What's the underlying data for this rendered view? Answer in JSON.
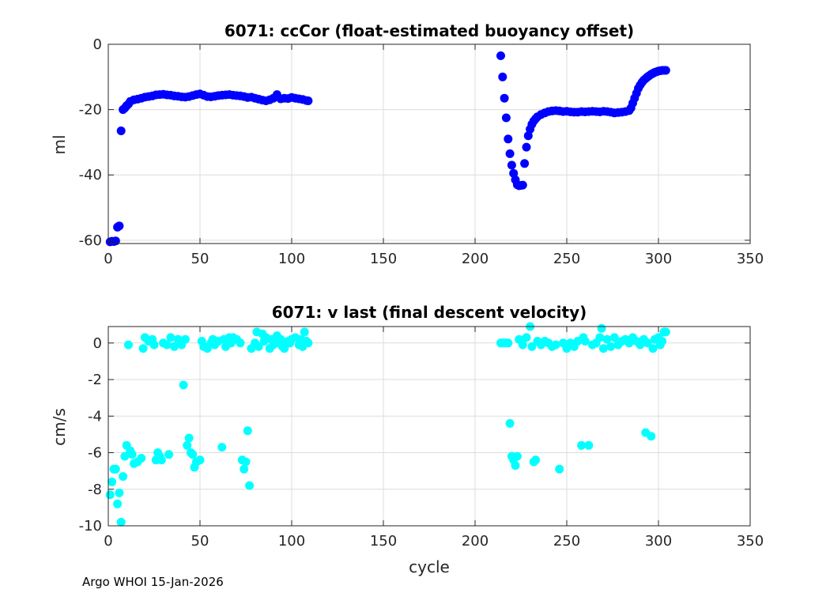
{
  "footer": "Argo WHOI 15-Jan-2026",
  "chart_data": [
    {
      "type": "scatter",
      "title": "6071: ccCor (float-estimated buoyancy offset)",
      "xlabel": "",
      "ylabel": "ml",
      "xlim": [
        0,
        350
      ],
      "ylim": [
        -61,
        0
      ],
      "xticks": [
        0,
        50,
        100,
        150,
        200,
        250,
        300,
        350
      ],
      "yticks": [
        0,
        -20,
        -40,
        -60
      ],
      "grid": true,
      "color": "#0000ff",
      "series": [
        {
          "name": "ccCor",
          "points": [
            [
              1,
              -60.5
            ],
            [
              2,
              -60.3
            ],
            [
              3,
              -60.4
            ],
            [
              4,
              -60.2
            ],
            [
              5,
              -56.0
            ],
            [
              6,
              -55.6
            ],
            [
              7,
              -26.5
            ],
            [
              8,
              -20.0
            ],
            [
              9,
              -19.5
            ],
            [
              10,
              -18.8
            ],
            [
              11,
              -18.3
            ],
            [
              12,
              -17.5
            ],
            [
              14,
              -17.0
            ],
            [
              16,
              -16.8
            ],
            [
              18,
              -16.5
            ],
            [
              20,
              -16.2
            ],
            [
              22,
              -16.0
            ],
            [
              24,
              -15.8
            ],
            [
              26,
              -15.5
            ],
            [
              28,
              -15.4
            ],
            [
              30,
              -15.3
            ],
            [
              32,
              -15.5
            ],
            [
              34,
              -15.6
            ],
            [
              36,
              -15.8
            ],
            [
              38,
              -15.9
            ],
            [
              40,
              -16.1
            ],
            [
              42,
              -16.2
            ],
            [
              44,
              -16.0
            ],
            [
              46,
              -15.7
            ],
            [
              48,
              -15.4
            ],
            [
              50,
              -15.2
            ],
            [
              52,
              -15.6
            ],
            [
              54,
              -16.0
            ],
            [
              56,
              -16.1
            ],
            [
              58,
              -15.9
            ],
            [
              60,
              -15.7
            ],
            [
              62,
              -15.6
            ],
            [
              64,
              -15.5
            ],
            [
              66,
              -15.4
            ],
            [
              68,
              -15.6
            ],
            [
              70,
              -15.7
            ],
            [
              72,
              -15.8
            ],
            [
              74,
              -16.0
            ],
            [
              76,
              -16.3
            ],
            [
              78,
              -16.2
            ],
            [
              80,
              -16.5
            ],
            [
              82,
              -16.8
            ],
            [
              84,
              -17.1
            ],
            [
              86,
              -17.3
            ],
            [
              88,
              -17.0
            ],
            [
              90,
              -16.5
            ],
            [
              92,
              -15.4
            ],
            [
              94,
              -16.7
            ],
            [
              96,
              -16.5
            ],
            [
              98,
              -16.6
            ],
            [
              100,
              -16.3
            ],
            [
              102,
              -16.5
            ],
            [
              104,
              -16.7
            ],
            [
              106,
              -16.9
            ],
            [
              108,
              -17.2
            ],
            [
              109,
              -17.3
            ],
            [
              214,
              -3.5
            ],
            [
              215,
              -10.0
            ],
            [
              216,
              -16.5
            ],
            [
              217,
              -22.5
            ],
            [
              218,
              -29.0
            ],
            [
              219,
              -33.5
            ],
            [
              220,
              -37.0
            ],
            [
              221,
              -39.5
            ],
            [
              222,
              -41.5
            ],
            [
              223,
              -43.0
            ],
            [
              224,
              -43.3
            ],
            [
              225,
              -43.2
            ],
            [
              226,
              -43.1
            ],
            [
              227,
              -36.5
            ],
            [
              228,
              -31.5
            ],
            [
              229,
              -28.0
            ],
            [
              230,
              -26.0
            ],
            [
              231,
              -24.5
            ],
            [
              232,
              -23.5
            ],
            [
              233,
              -22.8
            ],
            [
              234,
              -22.2
            ],
            [
              236,
              -21.5
            ],
            [
              238,
              -21.0
            ],
            [
              240,
              -20.6
            ],
            [
              242,
              -20.4
            ],
            [
              244,
              -20.3
            ],
            [
              246,
              -20.4
            ],
            [
              248,
              -20.6
            ],
            [
              250,
              -20.5
            ],
            [
              252,
              -20.7
            ],
            [
              254,
              -20.8
            ],
            [
              256,
              -20.8
            ],
            [
              258,
              -20.6
            ],
            [
              260,
              -20.7
            ],
            [
              262,
              -20.6
            ],
            [
              264,
              -20.5
            ],
            [
              266,
              -20.6
            ],
            [
              268,
              -20.7
            ],
            [
              270,
              -20.5
            ],
            [
              272,
              -20.6
            ],
            [
              274,
              -20.8
            ],
            [
              276,
              -21.0
            ],
            [
              278,
              -20.9
            ],
            [
              280,
              -20.8
            ],
            [
              282,
              -20.6
            ],
            [
              284,
              -20.3
            ],
            [
              285,
              -19.5
            ],
            [
              286,
              -18.0
            ],
            [
              287,
              -16.5
            ],
            [
              288,
              -15.0
            ],
            [
              289,
              -13.5
            ],
            [
              290,
              -12.5
            ],
            [
              291,
              -11.7
            ],
            [
              292,
              -11.0
            ],
            [
              293,
              -10.5
            ],
            [
              294,
              -10.0
            ],
            [
              295,
              -9.6
            ],
            [
              296,
              -9.2
            ],
            [
              297,
              -8.9
            ],
            [
              298,
              -8.6
            ],
            [
              299,
              -8.4
            ],
            [
              300,
              -8.2
            ],
            [
              301,
              -8.1
            ],
            [
              302,
              -8.0
            ],
            [
              303,
              -8.0
            ],
            [
              304,
              -8.0
            ]
          ]
        }
      ]
    },
    {
      "type": "scatter",
      "title": "6071: v last (final descent velocity)",
      "xlabel": "cycle",
      "ylabel": "cm/s",
      "xlim": [
        0,
        350
      ],
      "ylim": [
        -10,
        0.9
      ],
      "xticks": [
        0,
        50,
        100,
        150,
        200,
        250,
        300,
        350
      ],
      "yticks": [
        0,
        -2,
        -4,
        -6,
        -8,
        -10
      ],
      "grid": true,
      "color": "#00ffff",
      "series": [
        {
          "name": "v last",
          "points": [
            [
              1,
              -8.3
            ],
            [
              2,
              -7.6
            ],
            [
              3,
              -6.9
            ],
            [
              4,
              -6.9
            ],
            [
              5,
              -8.8
            ],
            [
              6,
              -8.2
            ],
            [
              7,
              -9.8
            ],
            [
              8,
              -7.3
            ],
            [
              9,
              -6.2
            ],
            [
              10,
              -5.6
            ],
            [
              11,
              -0.1
            ],
            [
              12,
              -5.9
            ],
            [
              13,
              -6.1
            ],
            [
              14,
              -6.6
            ],
            [
              16,
              -6.5
            ],
            [
              18,
              -6.3
            ],
            [
              19,
              -0.3
            ],
            [
              20,
              0.3
            ],
            [
              22,
              0.1
            ],
            [
              24,
              0.2
            ],
            [
              25,
              -0.1
            ],
            [
              26,
              -6.4
            ],
            [
              27,
              -6.0
            ],
            [
              28,
              -6.2
            ],
            [
              29,
              -6.4
            ],
            [
              30,
              0.0
            ],
            [
              32,
              -0.1
            ],
            [
              33,
              -6.1
            ],
            [
              34,
              0.3
            ],
            [
              36,
              -0.2
            ],
            [
              38,
              0.2
            ],
            [
              39,
              0.1
            ],
            [
              40,
              -0.1
            ],
            [
              41,
              -2.3
            ],
            [
              42,
              0.2
            ],
            [
              43,
              -5.6
            ],
            [
              44,
              -5.2
            ],
            [
              45,
              -6.0
            ],
            [
              46,
              -6.1
            ],
            [
              47,
              -6.8
            ],
            [
              48,
              -6.5
            ],
            [
              50,
              -6.4
            ],
            [
              51,
              0.1
            ],
            [
              52,
              -0.2
            ],
            [
              54,
              -0.3
            ],
            [
              56,
              0.0
            ],
            [
              57,
              0.2
            ],
            [
              58,
              -0.1
            ],
            [
              60,
              0.1
            ],
            [
              62,
              -5.7
            ],
            [
              63,
              0.2
            ],
            [
              64,
              -0.2
            ],
            [
              66,
              0.3
            ],
            [
              67,
              0.0
            ],
            [
              68,
              0.3
            ],
            [
              70,
              0.2
            ],
            [
              72,
              0.0
            ],
            [
              73,
              -6.4
            ],
            [
              74,
              -6.9
            ],
            [
              75,
              -6.5
            ],
            [
              76,
              -4.8
            ],
            [
              77,
              -7.8
            ],
            [
              78,
              -0.3
            ],
            [
              80,
              0.0
            ],
            [
              81,
              0.6
            ],
            [
              82,
              -0.2
            ],
            [
              84,
              0.5
            ],
            [
              85,
              0.1
            ],
            [
              86,
              0.3
            ],
            [
              88,
              -0.3
            ],
            [
              89,
              0.2
            ],
            [
              90,
              -0.1
            ],
            [
              92,
              0.4
            ],
            [
              93,
              0.0
            ],
            [
              94,
              0.2
            ],
            [
              95,
              -0.2
            ],
            [
              96,
              -0.3
            ],
            [
              98,
              0.1
            ],
            [
              99,
              0.0
            ],
            [
              100,
              0.2
            ],
            [
              102,
              0.3
            ],
            [
              104,
              -0.1
            ],
            [
              105,
              0.2
            ],
            [
              106,
              -0.2
            ],
            [
              107,
              0.6
            ],
            [
              108,
              0.1
            ],
            [
              109,
              0.0
            ],
            [
              214,
              0.0
            ],
            [
              215,
              0.0
            ],
            [
              216,
              0.0
            ],
            [
              217,
              0.0
            ],
            [
              218,
              0.0
            ],
            [
              219,
              -4.4
            ],
            [
              220,
              -6.2
            ],
            [
              221,
              -6.4
            ],
            [
              222,
              -6.7
            ],
            [
              223,
              -6.2
            ],
            [
              224,
              0.2
            ],
            [
              226,
              -0.1
            ],
            [
              228,
              0.3
            ],
            [
              230,
              0.9
            ],
            [
              231,
              -0.2
            ],
            [
              232,
              -6.5
            ],
            [
              233,
              -6.4
            ],
            [
              234,
              0.1
            ],
            [
              236,
              -0.1
            ],
            [
              238,
              0.1
            ],
            [
              240,
              0.0
            ],
            [
              242,
              -0.2
            ],
            [
              244,
              -0.1
            ],
            [
              246,
              -6.9
            ],
            [
              248,
              0.0
            ],
            [
              250,
              -0.3
            ],
            [
              252,
              0.0
            ],
            [
              254,
              -0.2
            ],
            [
              256,
              0.1
            ],
            [
              258,
              -5.6
            ],
            [
              259,
              0.3
            ],
            [
              260,
              0.1
            ],
            [
              262,
              -5.6
            ],
            [
              264,
              -0.1
            ],
            [
              266,
              0.0
            ],
            [
              268,
              0.3
            ],
            [
              269,
              0.8
            ],
            [
              270,
              -0.3
            ],
            [
              272,
              0.2
            ],
            [
              274,
              -0.2
            ],
            [
              276,
              0.3
            ],
            [
              278,
              -0.1
            ],
            [
              280,
              0.1
            ],
            [
              282,
              0.2
            ],
            [
              284,
              0.0
            ],
            [
              286,
              0.3
            ],
            [
              288,
              0.1
            ],
            [
              290,
              -0.1
            ],
            [
              292,
              0.2
            ],
            [
              293,
              -4.9
            ],
            [
              294,
              0.0
            ],
            [
              296,
              -5.1
            ],
            [
              297,
              -0.3
            ],
            [
              298,
              0.2
            ],
            [
              300,
              0.3
            ],
            [
              301,
              -0.1
            ],
            [
              302,
              0.1
            ],
            [
              303,
              0.6
            ],
            [
              304,
              0.6
            ]
          ]
        }
      ]
    }
  ]
}
